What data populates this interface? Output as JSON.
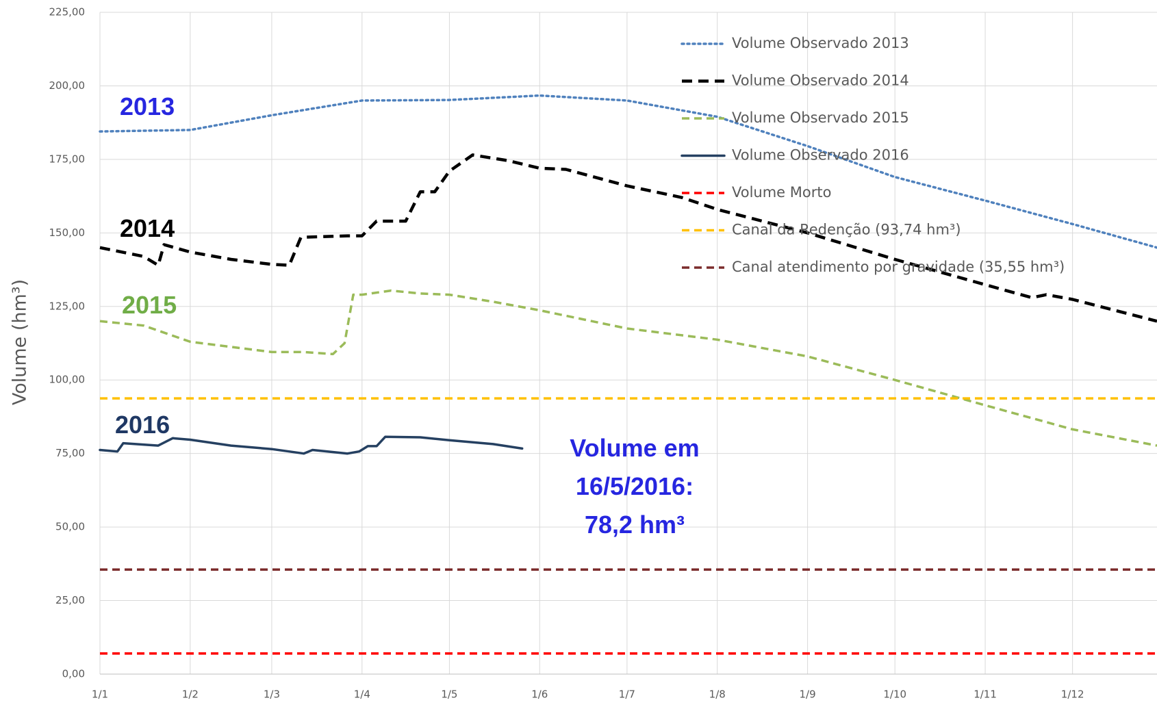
{
  "chart_data": {
    "type": "line",
    "y_label": "Volume (hm³)",
    "xlim": [
      0,
      363
    ],
    "ylim": [
      0,
      225
    ],
    "xticks": [
      {
        "value": 0,
        "label": "1/1"
      },
      {
        "value": 31,
        "label": "1/2"
      },
      {
        "value": 59,
        "label": "1/3"
      },
      {
        "value": 90,
        "label": "1/4"
      },
      {
        "value": 120,
        "label": "1/5"
      },
      {
        "value": 151,
        "label": "1/6"
      },
      {
        "value": 181,
        "label": "1/7"
      },
      {
        "value": 212,
        "label": "1/8"
      },
      {
        "value": 243,
        "label": "1/9"
      },
      {
        "value": 273,
        "label": "1/10"
      },
      {
        "value": 304,
        "label": "1/11"
      },
      {
        "value": 334,
        "label": "1/12"
      }
    ],
    "yticks": [
      {
        "value": 0,
        "label": "0,00"
      },
      {
        "value": 25,
        "label": "25,00"
      },
      {
        "value": 50,
        "label": "50,00"
      },
      {
        "value": 75,
        "label": "75,00"
      },
      {
        "value": 100,
        "label": "100,00"
      },
      {
        "value": 125,
        "label": "125,00"
      },
      {
        "value": 150,
        "label": "150,00"
      },
      {
        "value": 175,
        "label": "175,00"
      },
      {
        "value": 200,
        "label": "200,00"
      },
      {
        "value": 225,
        "label": "225,00"
      }
    ],
    "grid": true,
    "legend": "top-right",
    "series": [
      {
        "name": "Volume Observado 2013",
        "color": "#4f81bd",
        "dash": "dotted",
        "x": [
          0,
          31,
          59,
          90,
          120,
          151,
          181,
          212,
          243,
          273,
          304,
          334,
          363
        ],
        "values": [
          184.5,
          185,
          190,
          195,
          195.2,
          196.7,
          195,
          189.5,
          179.5,
          169,
          161,
          153,
          145
        ]
      },
      {
        "name": "Volume Observado 2014",
        "color": "#000000",
        "dash": "long",
        "x": [
          0,
          15,
          20,
          22,
          31,
          45,
          59,
          65,
          69,
          85,
          90,
          95,
          105,
          110,
          115,
          120,
          128,
          140,
          151,
          160,
          181,
          200,
          212,
          243,
          273,
          304,
          320,
          325,
          334,
          363
        ],
        "values": [
          145,
          142,
          139,
          146,
          143.5,
          141,
          139.3,
          139,
          148.5,
          149,
          149,
          154,
          154,
          164,
          164,
          171,
          176.5,
          174.6,
          172,
          171.6,
          166,
          162,
          158,
          150,
          141,
          132.4,
          128,
          129,
          127.4,
          120
        ]
      },
      {
        "name": "Volume Observado 2015",
        "color": "#9bbb59",
        "dash": "medium",
        "x": [
          0,
          15,
          31,
          59,
          70,
          80,
          84,
          87,
          90,
          100,
          110,
          120,
          135,
          151,
          181,
          212,
          243,
          273,
          304,
          334,
          363
        ],
        "values": [
          120,
          118.5,
          113,
          109.5,
          109.5,
          108.8,
          112.5,
          129,
          129,
          130.4,
          129.4,
          129,
          126.6,
          123.7,
          117.5,
          113.7,
          108,
          100,
          91.4,
          83.2,
          77.7
        ]
      },
      {
        "name": "Volume Observado 2016",
        "color": "#254061",
        "dash": "solid",
        "x": [
          0,
          6,
          8,
          20,
          25,
          31,
          45,
          59,
          70,
          73,
          85,
          89,
          92,
          95,
          98,
          110,
          120,
          135,
          145
        ],
        "values": [
          76.2,
          75.7,
          78.5,
          77.7,
          80.2,
          79.7,
          77.7,
          76.5,
          75,
          76.2,
          75,
          75.7,
          77.5,
          77.5,
          80.7,
          80.5,
          79.5,
          78.2,
          76.7
        ]
      },
      {
        "name": "Volume Morto",
        "color": "#ff0000",
        "dash": "medium",
        "x": [
          0,
          363
        ],
        "values": [
          7,
          7
        ]
      },
      {
        "name": "Canal da Redenção (93,74 hm³)",
        "color": "#ffc000",
        "dash": "medium",
        "x": [
          0,
          363
        ],
        "values": [
          93.74,
          93.74
        ]
      },
      {
        "name": "Canal atendimento por gravidade (35,55 hm³)",
        "color": "#7b2c2c",
        "dash": "medium",
        "x": [
          0,
          363
        ],
        "values": [
          35.55,
          35.55
        ]
      }
    ],
    "annotations": [
      {
        "text": [
          "2013"
        ],
        "color": "#2626e0"
      },
      {
        "text": [
          "2014"
        ],
        "color": "#000000"
      },
      {
        "text": [
          "2015"
        ],
        "color": "#70ad47"
      },
      {
        "text": [
          "2016"
        ],
        "color": "#1f3864"
      },
      {
        "text": [
          "Volume em",
          "16/5/2016:",
          "78,2 hm³"
        ],
        "color": "#2626e0"
      }
    ]
  }
}
